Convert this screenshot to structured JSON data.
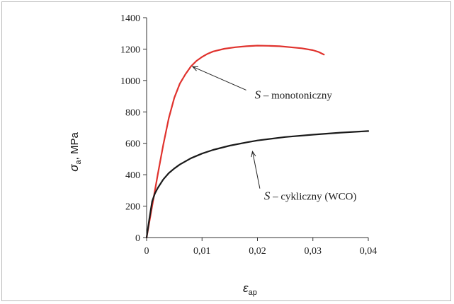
{
  "chart_data": {
    "type": "line",
    "title": "",
    "xlabel": "ε_ap",
    "ylabel": "σ_a, MPa",
    "xlabel_parts": {
      "symbol": "ε",
      "sub": "ap"
    },
    "ylabel_parts": {
      "symbol": "σ",
      "sub": "a",
      "rest": ", MPa"
    },
    "xlim": [
      0,
      0.04
    ],
    "ylim": [
      0,
      1400
    ],
    "x_ticks": [
      0,
      0.01,
      0.02,
      0.03,
      0.04
    ],
    "x_tick_labels": [
      "0",
      "0,01",
      "0,02",
      "0,03",
      "0,04"
    ],
    "y_ticks": [
      0,
      200,
      400,
      600,
      800,
      1000,
      1200,
      1400
    ],
    "y_tick_labels": [
      "0",
      "200",
      "400",
      "600",
      "800",
      "1000",
      "1200",
      "1400"
    ],
    "grid": false,
    "series": [
      {
        "color": "#e0322d",
        "x": [
          0,
          0.001,
          0.002,
          0.003,
          0.004,
          0.005,
          0.006,
          0.007,
          0.008,
          0.009,
          0.01,
          0.011,
          0.012,
          0.014,
          0.016,
          0.018,
          0.02,
          0.022,
          0.024,
          0.026,
          0.028,
          0.03,
          0.031,
          0.032
        ],
        "y": [
          0,
          200,
          400,
          590,
          760,
          890,
          980,
          1040,
          1090,
          1125,
          1150,
          1170,
          1185,
          1202,
          1212,
          1218,
          1222,
          1221,
          1218,
          1212,
          1205,
          1193,
          1182,
          1165
        ]
      },
      {
        "color": "#1a1a1a",
        "x": [
          0,
          0.0005,
          0.001,
          0.0015,
          0.002,
          0.003,
          0.004,
          0.005,
          0.006,
          0.008,
          0.01,
          0.012,
          0.015,
          0.018,
          0.02,
          0.025,
          0.03,
          0.035,
          0.04
        ],
        "y": [
          0,
          120,
          230,
          280,
          315,
          370,
          410,
          440,
          465,
          505,
          535,
          558,
          585,
          606,
          618,
          640,
          655,
          668,
          678
        ]
      }
    ],
    "annotations": [
      {
        "prefix": "S",
        "text": " – monotoniczny",
        "target": [
          0.0083,
          1088
        ],
        "label_at": [
          0.0195,
          885
        ]
      },
      {
        "prefix": "S",
        "text": " – cykliczny (WCO)",
        "target": [
          0.0191,
          548
        ],
        "label_at": [
          0.0212,
          240
        ]
      }
    ]
  }
}
